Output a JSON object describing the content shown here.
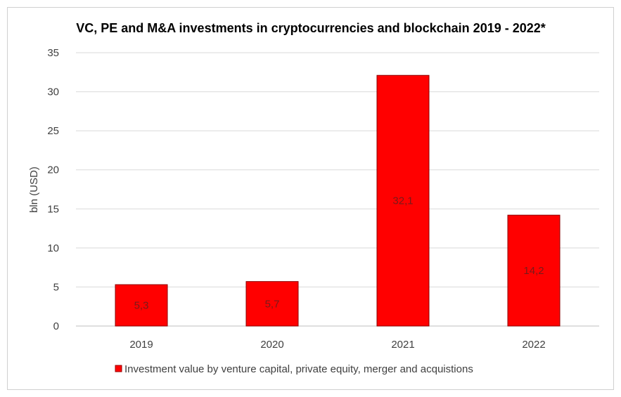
{
  "chart_data": {
    "type": "bar",
    "title": "VC, PE and M&A investments in cryptocurrencies and blockchain 2019 - 2022*",
    "xlabel": "",
    "ylabel": "bln (USD)",
    "categories": [
      "2019",
      "2020",
      "2021",
      "2022"
    ],
    "series": [
      {
        "name": "Investment value by venture capital, private equity, merger and acquistions",
        "values": [
          5.3,
          5.7,
          32.1,
          14.2
        ],
        "labels": [
          "5,3",
          "5,7",
          "32,1",
          "14,2"
        ],
        "color": "#ff0000"
      }
    ],
    "ylim": [
      0,
      35
    ],
    "yticks": [
      "0",
      "5",
      "10",
      "15",
      "20",
      "25",
      "30",
      "35"
    ],
    "grid": true,
    "legend": "bottom"
  }
}
